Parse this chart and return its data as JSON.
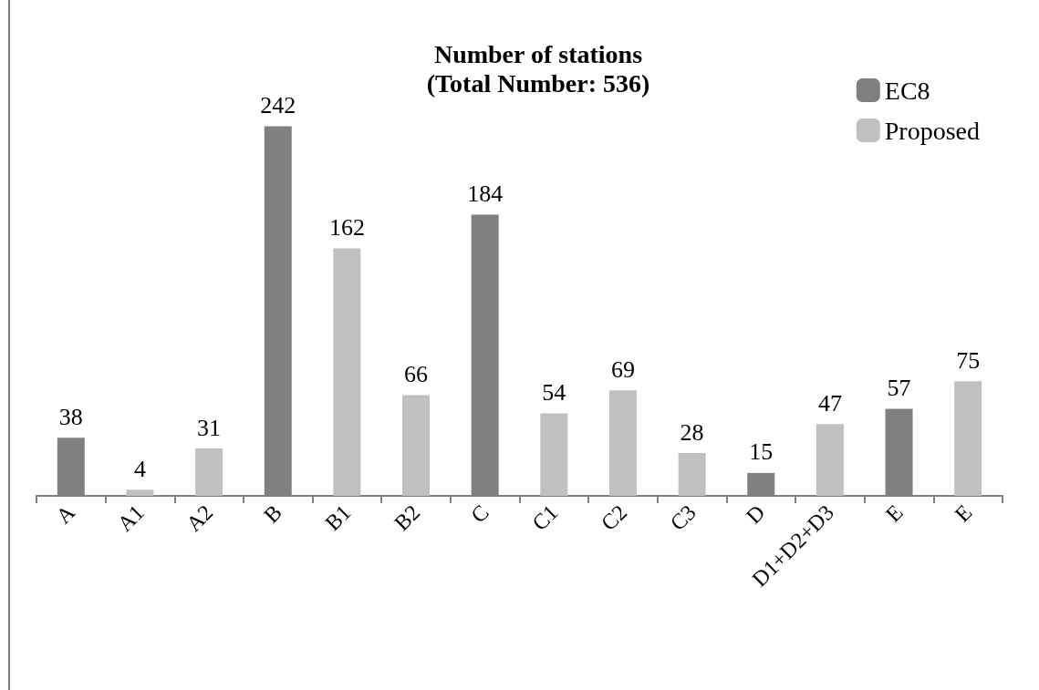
{
  "chart_data": {
    "type": "bar",
    "title": "Number of stations",
    "subtitle": "(Total Number: 536)",
    "categories": [
      "A",
      "A1",
      "A2",
      "B",
      "B1",
      "B2",
      "C",
      "C1",
      "C2",
      "C3",
      "D",
      "D1+D2+D3",
      "E",
      "E"
    ],
    "series": [
      {
        "name": "EC8",
        "color": "#808080",
        "values": [
          38,
          null,
          null,
          242,
          null,
          null,
          184,
          null,
          null,
          null,
          15,
          null,
          57,
          null
        ]
      },
      {
        "name": "Proposed",
        "color": "#c0c0c0",
        "values": [
          null,
          4,
          31,
          null,
          162,
          66,
          null,
          54,
          69,
          28,
          null,
          47,
          null,
          75
        ]
      }
    ],
    "data_labels": true,
    "legend": "top right",
    "grid": false
  }
}
